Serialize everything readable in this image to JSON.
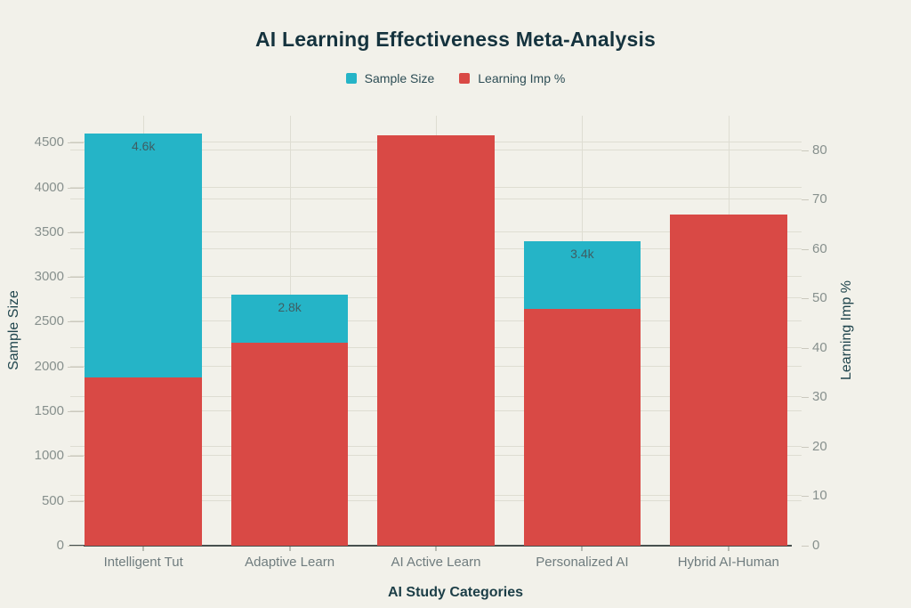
{
  "title": "AI Learning Effectiveness Meta-Analysis",
  "colors": {
    "background": "#f2f1ea",
    "sample_size_bar": "#25b4c7",
    "learning_imp_bar": "#d94945",
    "title_text": "#15333e",
    "axis_title_text": "#20454d",
    "tick_label_text": "#87908d",
    "category_label_text": "#6f7c7e",
    "gridline": "#deddd2",
    "axis_line": "#47504e"
  },
  "legend": {
    "items": [
      {
        "label": "Sample Size",
        "color": "#25b4c7"
      },
      {
        "label": "Learning Imp %",
        "color": "#d94945"
      }
    ]
  },
  "chart_data": {
    "type": "bar",
    "layout": "overlaid dual-axis bars, legend top center, horizontal gridlines for both axes, vertical gridlines at category centers",
    "title": "AI Learning Effectiveness Meta-Analysis",
    "categories": [
      "Intelligent Tut",
      "Adaptive Learn",
      "AI Active Learn",
      "Personalized AI",
      "Hybrid AI-Human"
    ],
    "series": [
      {
        "name": "Sample Size",
        "axis": "left",
        "color": "#25b4c7",
        "values": [
          4600,
          2800,
          null,
          3400,
          null
        ],
        "bar_labels": [
          "4.6k",
          "2.8k",
          null,
          "3.4k",
          null
        ],
        "note": "null values are fully hidden behind the red overlay bars"
      },
      {
        "name": "Learning Imp %",
        "axis": "right",
        "color": "#d94945",
        "values": [
          34,
          41,
          83,
          48,
          67
        ],
        "bar_labels": [
          null,
          null,
          null,
          null,
          null
        ]
      }
    ],
    "left_axis": {
      "label": "Sample Size",
      "ticks": [
        0,
        500,
        1000,
        1500,
        2000,
        2500,
        3000,
        3500,
        4000,
        4500
      ],
      "range": [
        0,
        4800
      ]
    },
    "right_axis": {
      "label": "Learning Imp %",
      "ticks": [
        0,
        10,
        20,
        30,
        40,
        50,
        60,
        70,
        80
      ],
      "range": [
        0,
        87
      ]
    },
    "x_axis": {
      "label": "AI Study Categories"
    }
  }
}
